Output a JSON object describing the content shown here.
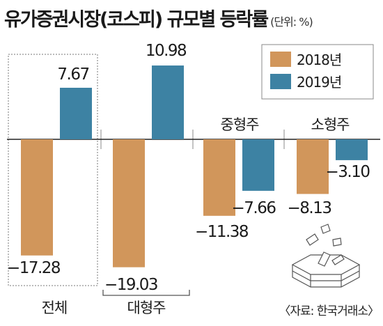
{
  "header": {
    "title": "유가증권시장(코스피) 규모별 등락률",
    "unit": "(단위: %)"
  },
  "source": "〈자료: 한국거래소〉",
  "colors": {
    "s2018": "#d1965b",
    "s2019": "#3d82a3",
    "axis": "#222222",
    "text": "#1a1a1a"
  },
  "chart_data": {
    "type": "bar",
    "categories": [
      "전체",
      "대형주",
      "중형주",
      "소형주"
    ],
    "series": [
      {
        "name": "2018년",
        "values": [
          -17.28,
          -19.03,
          -11.38,
          -8.13
        ]
      },
      {
        "name": "2019년",
        "values": [
          7.67,
          10.98,
          -7.66,
          -3.1
        ]
      }
    ],
    "value_labels": [
      [
        "−17.28",
        "−19.03",
        "−11.38",
        "−8.13"
      ],
      [
        "7.67",
        "10.98",
        "−7.66",
        "−3.10"
      ]
    ],
    "legend": {
      "position": "top-right",
      "labels": [
        "2018년",
        "2019년"
      ]
    },
    "ylim": [
      -20,
      12
    ],
    "grid": false,
    "xlabel": "",
    "ylabel": ""
  }
}
